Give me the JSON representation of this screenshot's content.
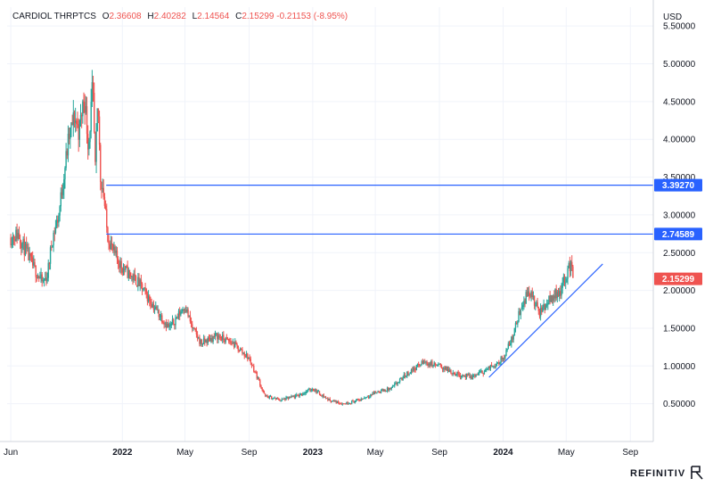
{
  "chart_data": {
    "type": "candlestick",
    "symbol": "CARDIOL THRPTCS",
    "ohlc": {
      "o_label": "O",
      "o": "2.36608",
      "h_label": "H",
      "h": "2.40282",
      "l_label": "L",
      "l": "2.14564",
      "c_label": "C",
      "c": "2.15299",
      "change": "-0.21153",
      "change_pct": "(-8.95%)"
    },
    "currency": "USD",
    "y_ticks": [
      "0.50000",
      "1.00000",
      "1.50000",
      "2.00000",
      "2.50000",
      "3.00000",
      "3.50000",
      "4.00000",
      "4.50000",
      "5.00000",
      "5.50000"
    ],
    "x_ticks": [
      "Jun",
      "2022",
      "May",
      "Sep",
      "2023",
      "May",
      "Sep",
      "2024",
      "May",
      "Sep"
    ],
    "ylim": [
      0.0,
      5.75
    ],
    "grid": true,
    "price_path": [
      [
        "2021-06-01",
        2.7
      ],
      [
        "2021-06-15",
        2.75
      ],
      [
        "2021-07-01",
        2.5
      ],
      [
        "2021-07-15",
        2.3
      ],
      [
        "2021-08-01",
        2.1
      ],
      [
        "2021-08-10",
        2.2
      ],
      [
        "2021-08-20",
        2.7
      ],
      [
        "2021-09-01",
        3.0
      ],
      [
        "2021-09-10",
        3.5
      ],
      [
        "2021-09-20",
        4.0
      ],
      [
        "2021-10-01",
        4.3
      ],
      [
        "2021-10-10",
        4.1
      ],
      [
        "2021-10-20",
        4.6
      ],
      [
        "2021-10-28",
        3.9
      ],
      [
        "2021-11-05",
        4.7
      ],
      [
        "2021-11-10",
        3.6
      ],
      [
        "2021-11-15",
        4.5
      ],
      [
        "2021-11-20",
        3.5
      ],
      [
        "2021-11-25",
        3.35
      ],
      [
        "2021-12-03",
        2.75
      ],
      [
        "2021-12-15",
        2.5
      ],
      [
        "2022-01-01",
        2.3
      ],
      [
        "2022-02-01",
        2.1
      ],
      [
        "2022-03-01",
        1.8
      ],
      [
        "2022-04-01",
        1.5
      ],
      [
        "2022-05-01",
        1.8
      ],
      [
        "2022-05-15",
        1.5
      ],
      [
        "2022-06-01",
        1.3
      ],
      [
        "2022-07-01",
        1.4
      ],
      [
        "2022-08-01",
        1.3
      ],
      [
        "2022-09-01",
        1.1
      ],
      [
        "2022-09-20",
        0.8
      ],
      [
        "2022-10-01",
        0.6
      ],
      [
        "2022-11-01",
        0.55
      ],
      [
        "2022-12-01",
        0.6
      ],
      [
        "2023-01-01",
        0.7
      ],
      [
        "2023-02-01",
        0.55
      ],
      [
        "2023-03-01",
        0.5
      ],
      [
        "2023-04-01",
        0.55
      ],
      [
        "2023-05-01",
        0.65
      ],
      [
        "2023-06-01",
        0.7
      ],
      [
        "2023-07-01",
        0.9
      ],
      [
        "2023-08-01",
        1.05
      ],
      [
        "2023-09-01",
        1.0
      ],
      [
        "2023-10-01",
        0.9
      ],
      [
        "2023-11-01",
        0.85
      ],
      [
        "2023-12-01",
        0.95
      ],
      [
        "2024-01-01",
        1.1
      ],
      [
        "2024-01-20",
        1.4
      ],
      [
        "2024-02-05",
        1.8
      ],
      [
        "2024-02-20",
        2.0
      ],
      [
        "2024-03-10",
        1.7
      ],
      [
        "2024-04-01",
        1.9
      ],
      [
        "2024-04-20",
        2.0
      ],
      [
        "2024-05-01",
        2.2
      ],
      [
        "2024-05-10",
        2.36
      ],
      [
        "2024-05-15",
        2.15
      ]
    ],
    "annotations": [
      {
        "kind": "horizontal",
        "price": 3.3927,
        "from": "2021-12-01",
        "label": "3.39270"
      },
      {
        "kind": "horizontal",
        "price": 2.74589,
        "from": "2021-12-01",
        "label": "2.74589"
      },
      {
        "kind": "trend",
        "points": [
          [
            "2023-12-05",
            0.85
          ],
          [
            "2024-07-10",
            2.35
          ]
        ]
      }
    ],
    "last_price_label": "2.15299",
    "colors": {
      "up": "#26a69a",
      "down": "#ef5350",
      "line": "#2962ff",
      "grid": "#f0f3fa",
      "text": "#131722"
    }
  },
  "branding": {
    "name": "REFINITIV"
  }
}
